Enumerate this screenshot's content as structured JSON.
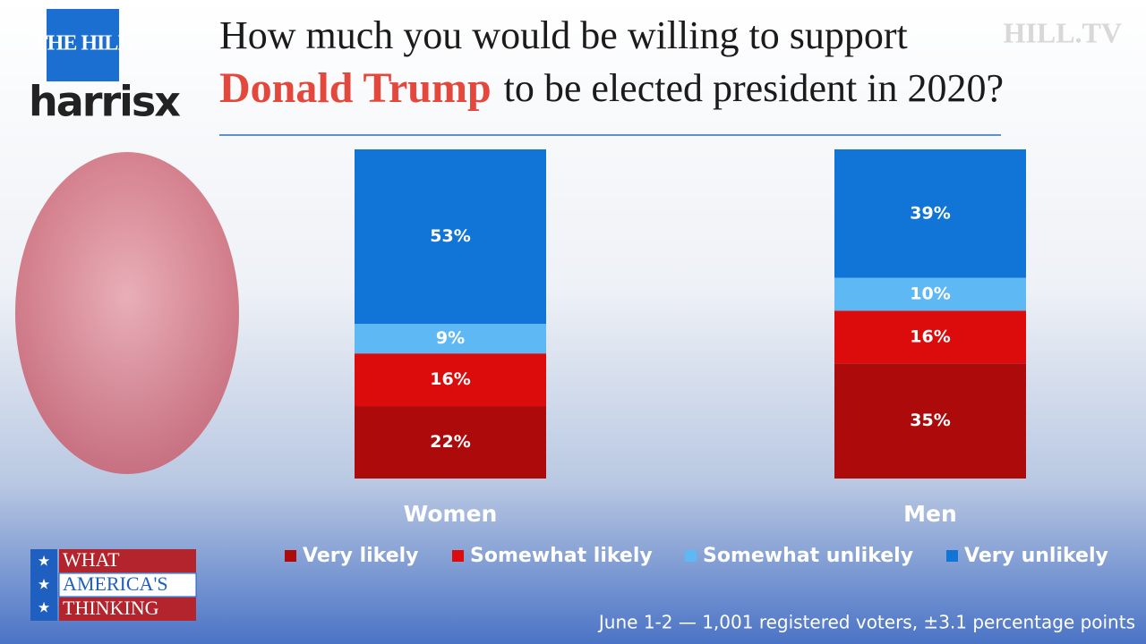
{
  "branding": {
    "logo_top": "THE HILL",
    "logo_bottom": "harrisx",
    "watermark": "HILL.TV",
    "badge": [
      "WHAT",
      "AMERICA'S",
      "THINKING"
    ]
  },
  "chart_data": {
    "type": "stacked-bar",
    "title": "How much you would be willing to support",
    "title_highlight": "Donald Trump",
    "title_rest": "to be elected president in 2020?",
    "categories": [
      "Women",
      "Men"
    ],
    "series": [
      {
        "name": "Very likely",
        "color": "#ad0b0b",
        "values": [
          22,
          35
        ],
        "value_labels": [
          "22%",
          "35%"
        ]
      },
      {
        "name": "Somewhat likely",
        "color": "#dd0c0c",
        "values": [
          16,
          16
        ],
        "value_labels": [
          "16%",
          "16%"
        ]
      },
      {
        "name": "Somewhat unlikely",
        "color": "#5db8f4",
        "values": [
          9,
          10
        ],
        "value_labels": [
          "9%",
          "10%"
        ]
      },
      {
        "name": "Very unlikely",
        "color": "#1175d8",
        "values": [
          53,
          39
        ],
        "value_labels": [
          "53%",
          "39%"
        ]
      }
    ],
    "ylim": [
      0,
      100
    ],
    "legend": "bottom",
    "note": "June 1-2 — 1,001 registered voters, ±3.1 percentage points"
  }
}
